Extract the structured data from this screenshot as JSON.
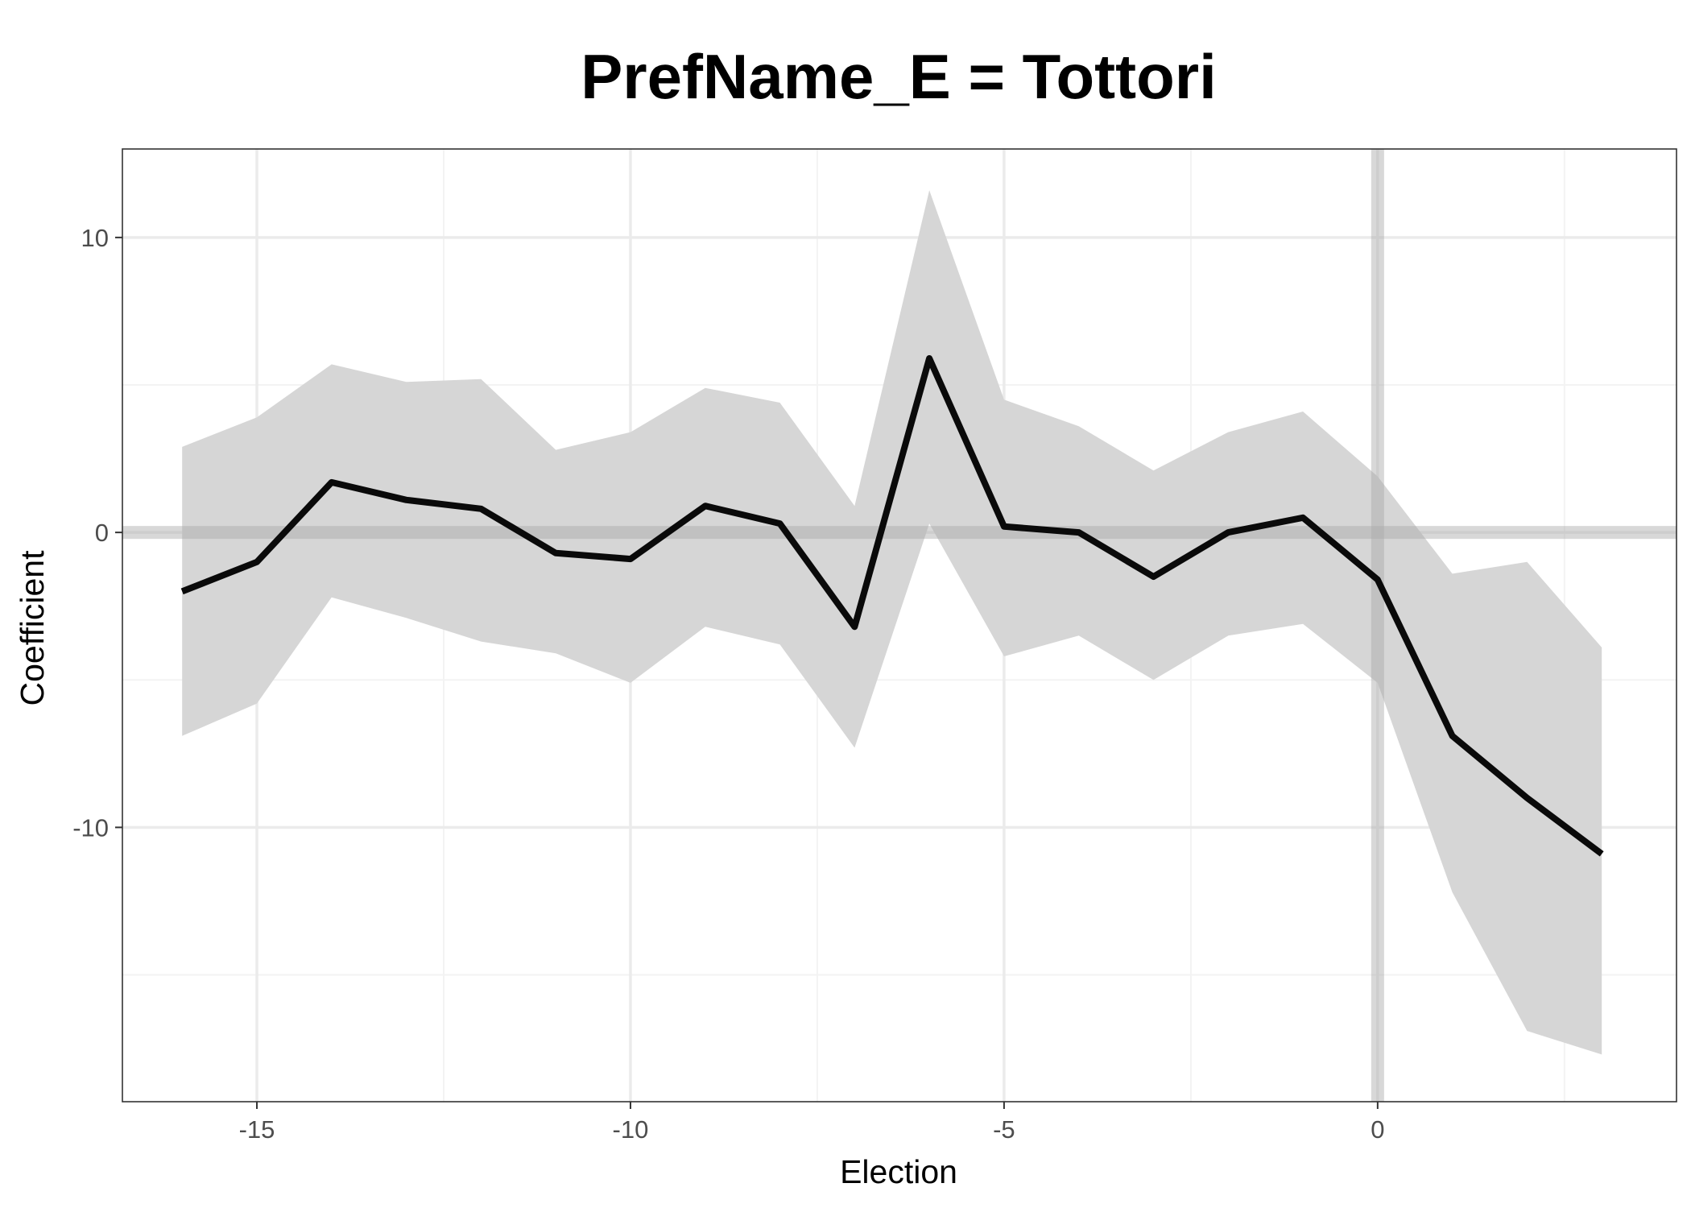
{
  "chart_data": {
    "type": "line",
    "title": "PrefName_E = Tottori",
    "xlabel": "Election",
    "ylabel": "Coefficient",
    "xlim": [
      -16.8,
      4.0
    ],
    "ylim": [
      -19.3,
      13.0
    ],
    "xticks": [
      -15,
      -10,
      -5,
      0
    ],
    "xtick_labels": [
      "-15",
      "-10",
      "-5",
      "0"
    ],
    "yticks": [
      -10,
      0,
      10
    ],
    "ytick_labels": [
      "-10",
      "0",
      "10"
    ],
    "x_minor_ticks": [
      -12.5,
      -7.5,
      -2.5,
      2.5
    ],
    "y_minor_ticks": [
      -15,
      -5,
      5
    ],
    "grid": true,
    "reference_lines": {
      "x": 0,
      "y": 0
    },
    "series": [
      {
        "x": [
          -16,
          -15,
          -14,
          -13,
          -12,
          -11,
          -10,
          -9,
          -8,
          -7,
          -6,
          -5,
          -4,
          -3,
          -2,
          -1,
          0,
          1,
          2,
          3
        ],
        "values": [
          -2.0,
          -1.0,
          1.7,
          1.1,
          0.8,
          -0.7,
          -0.9,
          0.9,
          0.3,
          -3.2,
          5.9,
          0.2,
          0.0,
          -1.5,
          0.0,
          0.5,
          -1.6,
          -6.9,
          -9.0,
          -10.9
        ],
        "lower": [
          -6.9,
          -5.8,
          -2.2,
          -2.9,
          -3.7,
          -4.1,
          -5.1,
          -3.2,
          -3.8,
          -7.3,
          0.3,
          -4.2,
          -3.5,
          -5.0,
          -3.5,
          -3.1,
          -5.1,
          -12.2,
          -16.9,
          -17.7
        ],
        "upper": [
          2.9,
          3.9,
          5.7,
          5.1,
          5.2,
          2.8,
          3.4,
          4.9,
          4.4,
          0.9,
          11.6,
          4.5,
          3.6,
          2.1,
          3.4,
          4.1,
          1.9,
          -1.4,
          -1.0,
          -3.9
        ]
      }
    ],
    "colors": {
      "line": "#0a0a0a",
      "ribbon": "#d6d6d6",
      "reference": "#c2c2c2",
      "grid_major": "#ebebeb",
      "grid_minor": "#f3f3f3",
      "panel_border": "#333333"
    }
  }
}
